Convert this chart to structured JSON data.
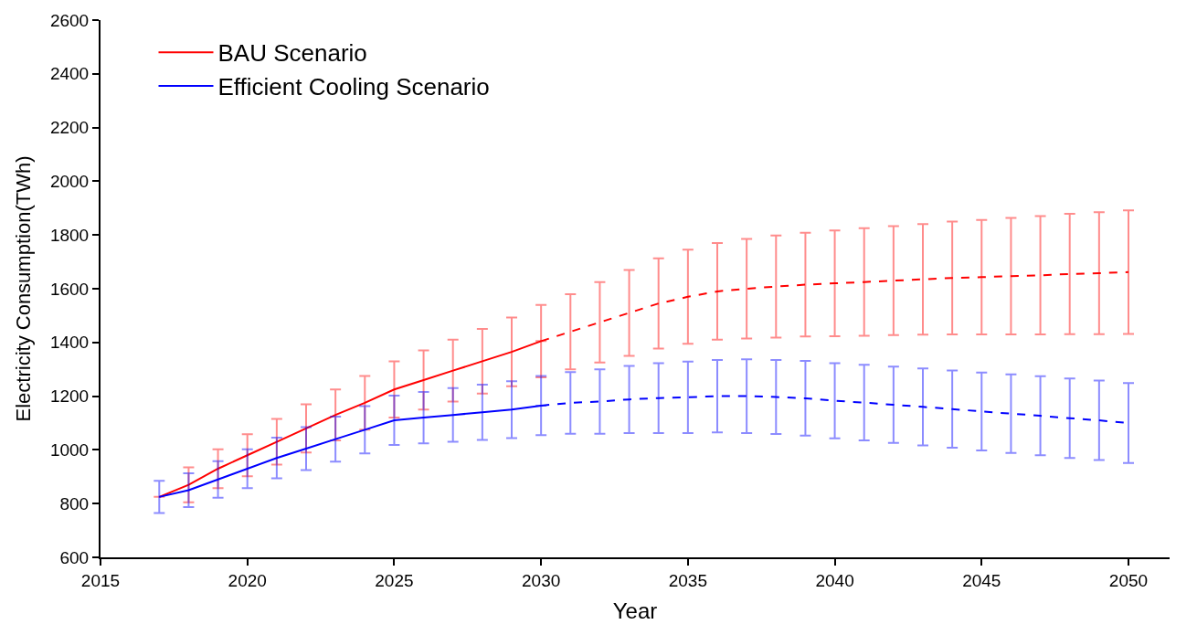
{
  "chart_data": {
    "type": "line",
    "xlabel": "Year",
    "ylabel": "Electricity Consumption(TWh)",
    "xlim": [
      2015,
      2051.4
    ],
    "xticks": [
      2015,
      2020,
      2025,
      2030,
      2035,
      2040,
      2045,
      2050
    ],
    "ylim": [
      600,
      2600
    ],
    "yticks": [
      600,
      800,
      1000,
      1200,
      1400,
      1600,
      1800,
      2000,
      2200,
      2400,
      2600
    ],
    "legend": "top left",
    "marker": "none",
    "series": [
      {
        "name": "BAU Scenario",
        "color": "#ff0000",
        "line_style": "solid",
        "x": [
          2017,
          2018,
          2019,
          2020,
          2021,
          2022,
          2023,
          2024,
          2025,
          2026,
          2027,
          2028,
          2029,
          2030
        ],
        "values": [
          825,
          870,
          930,
          980,
          1030,
          1080,
          1130,
          1175,
          1225,
          1260,
          1295,
          1330,
          1365,
          1405
        ],
        "errors": [
          null,
          65,
          72,
          78,
          85,
          90,
          95,
          100,
          105,
          110,
          115,
          120,
          128,
          135
        ]
      },
      {
        "color": "#ff0000",
        "line_style": "dashed",
        "x": [
          2030,
          2031,
          2032,
          2033,
          2034,
          2035,
          2036,
          2037,
          2038,
          2039,
          2040,
          2041,
          2042,
          2043,
          2044,
          2045,
          2046,
          2047,
          2048,
          2049,
          2050
        ],
        "values": [
          1405,
          1440,
          1475,
          1510,
          1545,
          1570,
          1590,
          1600,
          1608,
          1615,
          1620,
          1625,
          1630,
          1635,
          1640,
          1643,
          1647,
          1650,
          1655,
          1658,
          1662
        ],
        "errors": [
          null,
          140,
          150,
          160,
          168,
          175,
          180,
          185,
          190,
          193,
          197,
          200,
          203,
          206,
          210,
          213,
          217,
          220,
          224,
          227,
          230
        ]
      },
      {
        "name": "Efficient Cooling Scenario",
        "color": "#0000ff",
        "line_style": "solid",
        "x": [
          2017,
          2018,
          2019,
          2020,
          2021,
          2022,
          2023,
          2024,
          2025,
          2026,
          2027,
          2028,
          2029,
          2030
        ],
        "values": [
          825,
          850,
          890,
          930,
          970,
          1005,
          1040,
          1075,
          1110,
          1120,
          1130,
          1140,
          1150,
          1165
        ],
        "errors": [
          60,
          63,
          68,
          72,
          76,
          80,
          84,
          88,
          92,
          96,
          100,
          103,
          106,
          110
        ]
      },
      {
        "color": "#0000ff",
        "line_style": "dashed",
        "x": [
          2030,
          2031,
          2032,
          2033,
          2034,
          2035,
          2036,
          2037,
          2038,
          2039,
          2040,
          2041,
          2042,
          2043,
          2044,
          2045,
          2046,
          2047,
          2048,
          2049,
          2050
        ],
        "values": [
          1165,
          1175,
          1180,
          1188,
          1193,
          1196,
          1200,
          1200,
          1197,
          1192,
          1183,
          1176,
          1168,
          1160,
          1152,
          1143,
          1135,
          1127,
          1118,
          1110,
          1100
        ],
        "errors": [
          null,
          115,
          120,
          125,
          130,
          133,
          135,
          137,
          138,
          139,
          140,
          141,
          142,
          143,
          144,
          145,
          146,
          147,
          148,
          148,
          149
        ]
      }
    ]
  }
}
